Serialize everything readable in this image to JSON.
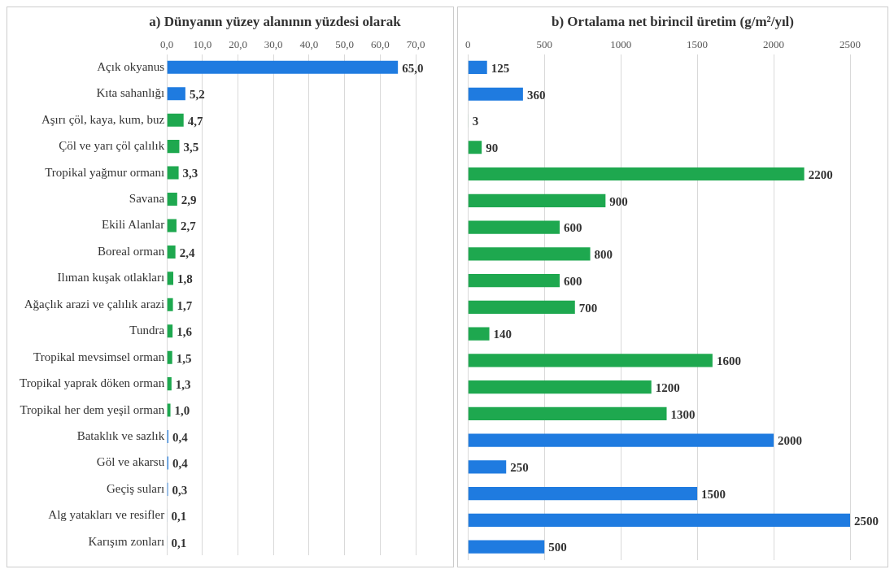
{
  "chart_data": [
    {
      "type": "bar",
      "orientation": "horizontal",
      "title": "a) Dünyanın yüzey alanının yüzdesi olarak",
      "categories": [
        "Açık okyanus",
        "Kıta sahanlığı",
        "Aşırı çöl, kaya, kum, buz",
        "Çöl ve yarı çöl çalılık",
        "Tropikal yağmur ormanı",
        "Savana",
        "Ekili Alanlar",
        "Boreal orman",
        "Ilıman kuşak otlakları",
        "Ağaçlık arazi ve çalılık arazi",
        "Tundra",
        "Tropikal mevsimsel orman",
        "Tropikal yaprak döken orman",
        "Tropikal her dem yeşil orman",
        "Bataklık ve sazlık",
        "Göl ve akarsu",
        "Geçiş suları",
        "Alg yatakları ve resifler",
        "Karışım zonları"
      ],
      "values": [
        65.0,
        5.2,
        4.7,
        3.5,
        3.3,
        2.9,
        2.7,
        2.4,
        1.8,
        1.7,
        1.6,
        1.5,
        1.3,
        1.0,
        0.4,
        0.4,
        0.3,
        0.1,
        0.1
      ],
      "value_labels": [
        "65,0",
        "5,2",
        "4,7",
        "3,5",
        "3,3",
        "2,9",
        "2,7",
        "2,4",
        "1,8",
        "1,7",
        "1,6",
        "1,5",
        "1,3",
        "1,0",
        "0,4",
        "0,4",
        "0,3",
        "0,1",
        "0,1"
      ],
      "colors": [
        "#1f7be0",
        "#1f7be0",
        "#1ea84f",
        "#1ea84f",
        "#1ea84f",
        "#1ea84f",
        "#1ea84f",
        "#1ea84f",
        "#1ea84f",
        "#1ea84f",
        "#1ea84f",
        "#1ea84f",
        "#1ea84f",
        "#1ea84f",
        "#1f7be0",
        "#1f7be0",
        "#1f7be0",
        "#1f7be0",
        "#1f7be0"
      ],
      "xlim": [
        0,
        70
      ],
      "xticks": [
        {
          "value": 0,
          "label": "0,0"
        },
        {
          "value": 10,
          "label": "10,0"
        },
        {
          "value": 20,
          "label": "20,0"
        },
        {
          "value": 30,
          "label": "30,0"
        },
        {
          "value": 40,
          "label": "40,0"
        },
        {
          "value": 50,
          "label": "50,0"
        },
        {
          "value": 60,
          "label": "60,0"
        },
        {
          "value": 70,
          "label": "70,0"
        }
      ],
      "grid": "x",
      "legend": false
    },
    {
      "type": "bar",
      "orientation": "horizontal",
      "title": "b) Ortalama net birincil üretim (g/m²/yıl)",
      "categories": [
        null,
        null,
        null,
        null,
        null,
        null,
        null,
        null,
        null,
        null,
        null,
        null,
        null,
        null,
        null,
        null,
        null,
        null,
        null
      ],
      "values": [
        125,
        360,
        3,
        90,
        2200,
        900,
        600,
        800,
        600,
        700,
        140,
        1600,
        1200,
        1300,
        2000,
        250,
        1500,
        2500,
        500
      ],
      "colors": [
        "#1f7be0",
        "#1f7be0",
        "#1ea84f",
        "#1ea84f",
        "#1ea84f",
        "#1ea84f",
        "#1ea84f",
        "#1ea84f",
        "#1ea84f",
        "#1ea84f",
        "#1ea84f",
        "#1ea84f",
        "#1ea84f",
        "#1ea84f",
        "#1f7be0",
        "#1f7be0",
        "#1f7be0",
        "#1f7be0",
        "#1f7be0"
      ],
      "data_labels": true,
      "xlim": [
        0,
        2500
      ],
      "xticks": [
        0,
        500,
        1000,
        1500,
        2000,
        2500
      ],
      "tick_labels": "x",
      "grid": "x",
      "legend": false
    }
  ]
}
